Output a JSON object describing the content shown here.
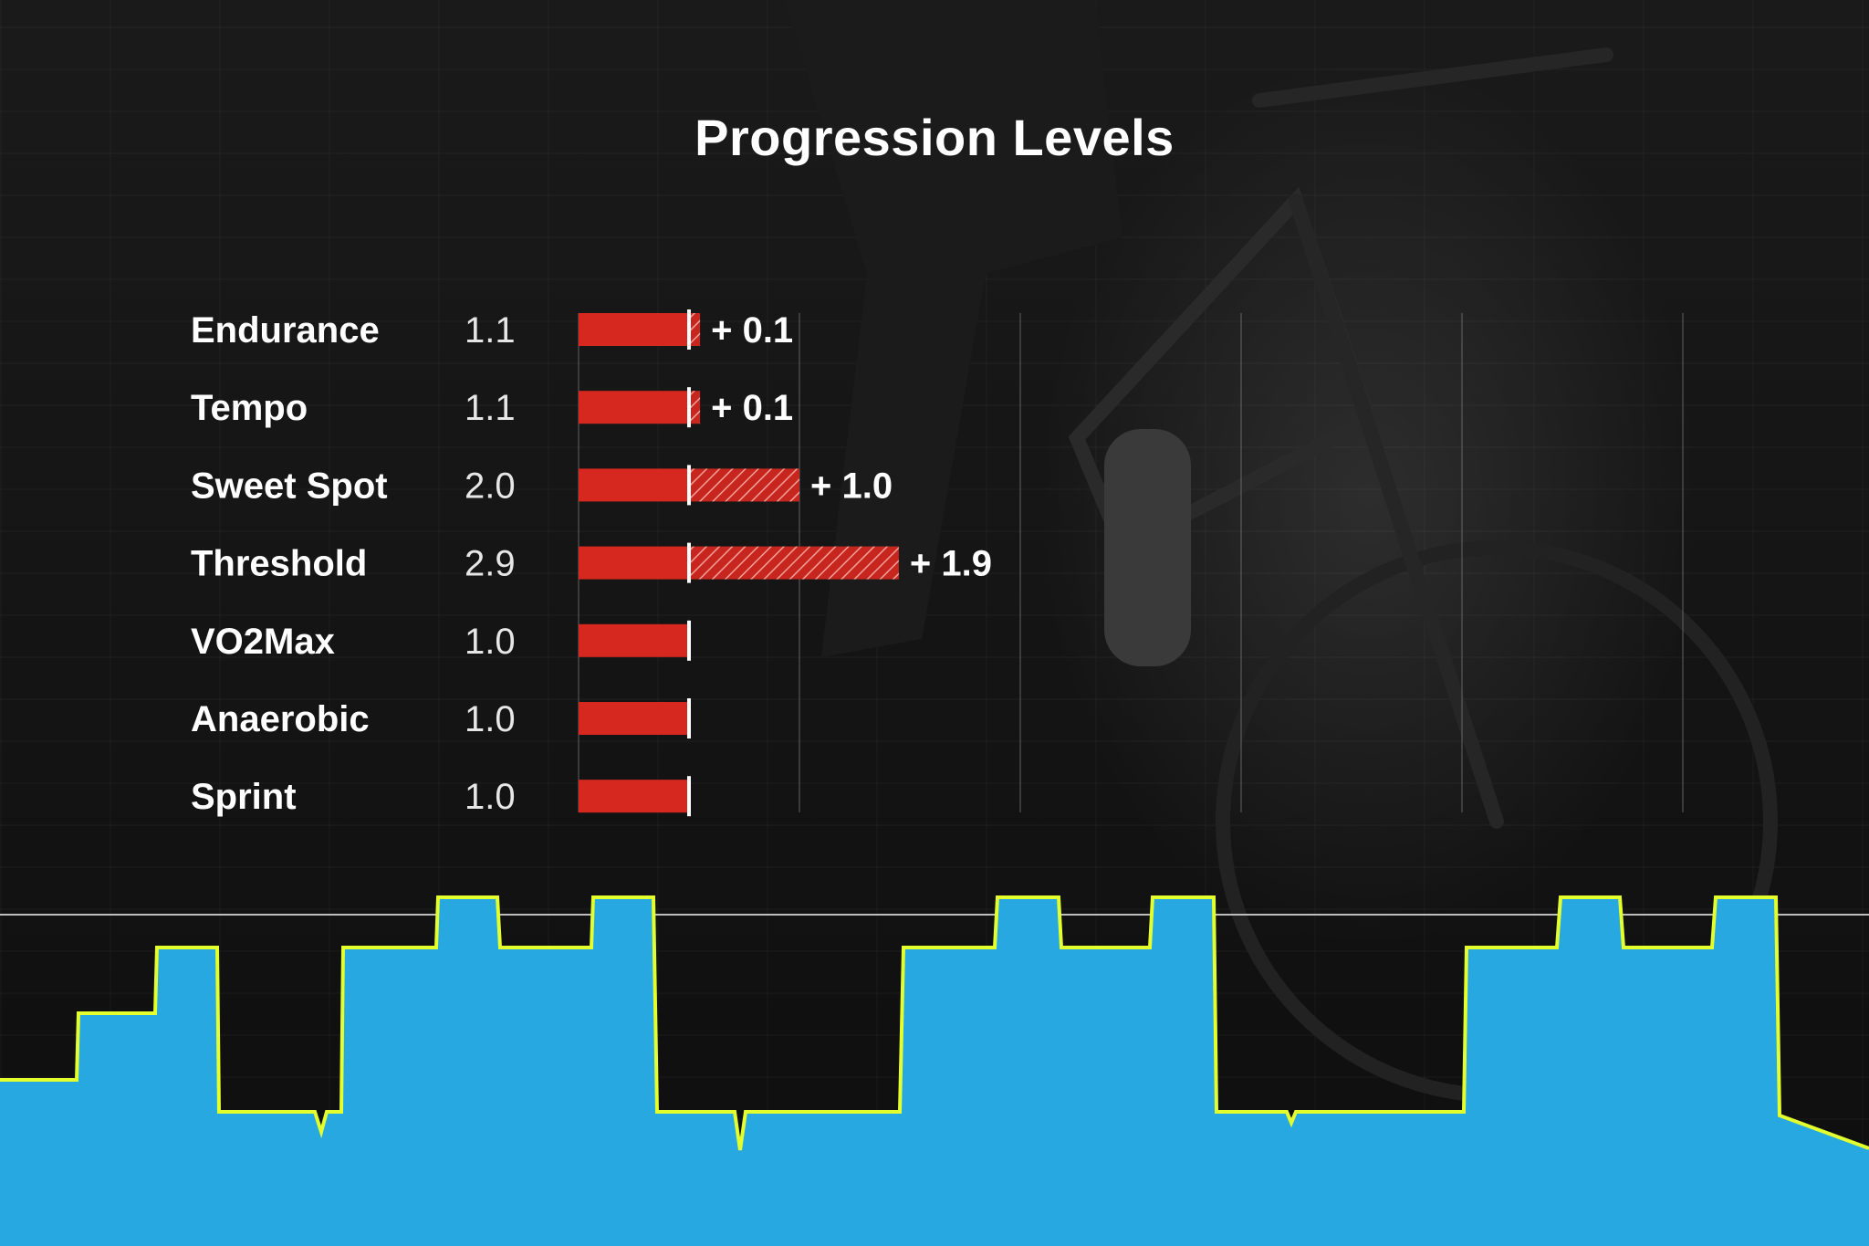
{
  "title": "Progression Levels",
  "colors": {
    "bar": "#d7281f",
    "gain_hatch": "#d7281f",
    "marker": "#ffffff",
    "gridline": "#8a8a8a",
    "workout_fill": "#27a8e0",
    "workout_line": "#e4ff2e",
    "ftp_line": "#bdbdbd"
  },
  "chart_data": {
    "type": "bar",
    "title": "Progression Levels",
    "categories": [
      "Endurance",
      "Tempo",
      "Sweet Spot",
      "Threshold",
      "VO2Max",
      "Anaerobic",
      "Sprint"
    ],
    "series": [
      {
        "values": [
          1.0,
          1.0,
          1.0,
          1.0,
          1.0,
          1.0,
          1.0
        ]
      },
      {
        "values": [
          0.1,
          0.1,
          1.0,
          1.9,
          0,
          0,
          0
        ]
      }
    ],
    "level_labels": [
      "1.1",
      "1.1",
      "2.0",
      "2.9",
      "1.0",
      "1.0",
      "1.0"
    ],
    "delta_labels": [
      "+ 0.1",
      "+ 0.1",
      "+ 1.0",
      "+ 1.9",
      "",
      "",
      ""
    ],
    "xlim": [
      0,
      10
    ],
    "grid": true,
    "xlabel": "",
    "ylabel": ""
  }
}
